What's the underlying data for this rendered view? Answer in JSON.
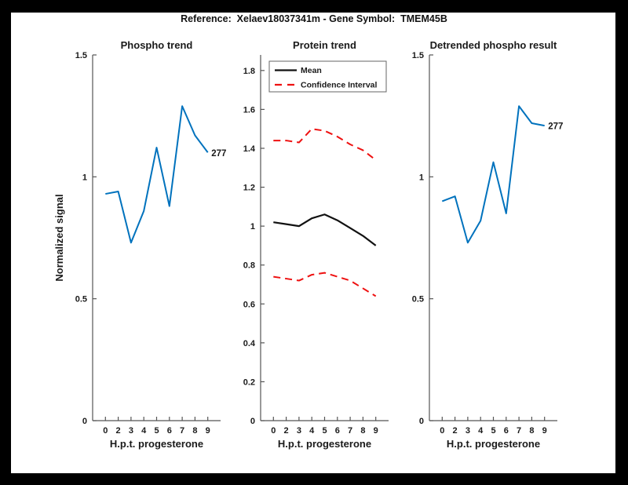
{
  "figure": {
    "title": "Reference:  Xelaev18037341m - Gene Symbol:  TMEM45B"
  },
  "colors": {
    "background": "#000000",
    "canvas": "#ffffff",
    "blue": "#0072BD",
    "red": "#EE1111",
    "black_line": "#111111",
    "axis": "#555555",
    "text": "#1a1a1a",
    "legend_border": "#666666"
  },
  "chart_data": [
    {
      "type": "line",
      "title": "Phospho trend",
      "xlabel": "H.p.t. progesterone",
      "ylabel": "Normalized signal",
      "x_tick_labels": [
        "0",
        "2",
        "3",
        "4",
        "5",
        "6",
        "7",
        "8",
        "9"
      ],
      "xlim": [
        0,
        10
      ],
      "ylim": [
        0,
        1.5
      ],
      "yticks": [
        "0",
        "0.5",
        "1",
        "1.5"
      ],
      "grid": false,
      "legend": null,
      "series": [
        {
          "key": "phospho",
          "name": "Phospho signal",
          "color": "#0072BD",
          "dash": false,
          "width": 2,
          "values": [
            0.93,
            0.94,
            0.73,
            0.86,
            1.12,
            0.88,
            1.29,
            1.17,
            1.1
          ]
        }
      ],
      "end_label": "277"
    },
    {
      "type": "line",
      "title": "Protein trend",
      "xlabel": "H.p.t. progesterone",
      "ylabel": null,
      "x_tick_labels": [
        "0",
        "2",
        "3",
        "4",
        "5",
        "6",
        "7",
        "8",
        "9"
      ],
      "xlim": [
        0,
        10
      ],
      "ylim": [
        0,
        1.88
      ],
      "yticks": [
        "0",
        "0.2",
        "0.4",
        "0.6",
        "0.8",
        "1",
        "1.2",
        "1.4",
        "1.6",
        "1.8"
      ],
      "grid": false,
      "legend": {
        "position": "north",
        "entries": [
          {
            "label": "Mean",
            "color": "#111111",
            "dash": false
          },
          {
            "label": "Confidence Interval",
            "color": "#EE1111",
            "dash": true
          }
        ]
      },
      "series": [
        {
          "key": "ci-upper",
          "name": "Confidence Interval upper",
          "color": "#EE1111",
          "dash": true,
          "width": 2,
          "values": [
            1.44,
            1.44,
            1.43,
            1.5,
            1.49,
            1.46,
            1.42,
            1.39,
            1.34
          ]
        },
        {
          "key": "ci-lower",
          "name": "Confidence Interval lower",
          "color": "#EE1111",
          "dash": true,
          "width": 2,
          "values": [
            0.74,
            0.73,
            0.72,
            0.75,
            0.76,
            0.74,
            0.72,
            0.68,
            0.64
          ]
        },
        {
          "key": "mean",
          "name": "Mean",
          "color": "#111111",
          "dash": false,
          "width": 2.2,
          "values": [
            1.02,
            1.01,
            1.0,
            1.04,
            1.06,
            1.03,
            0.99,
            0.95,
            0.9
          ]
        }
      ],
      "end_label": null
    },
    {
      "type": "line",
      "title": "Detrended phospho result",
      "xlabel": "H.p.t. progesterone",
      "ylabel": null,
      "x_tick_labels": [
        "0",
        "2",
        "3",
        "4",
        "5",
        "6",
        "7",
        "8",
        "9"
      ],
      "xlim": [
        0,
        10
      ],
      "ylim": [
        0,
        1.5
      ],
      "yticks": [
        "0",
        "0.5",
        "1",
        "1.5"
      ],
      "grid": false,
      "legend": null,
      "series": [
        {
          "key": "detrended",
          "name": "Detrended phospho signal",
          "color": "#0072BD",
          "dash": false,
          "width": 2,
          "values": [
            0.9,
            0.92,
            0.73,
            0.82,
            1.06,
            0.85,
            1.29,
            1.22,
            1.21
          ]
        }
      ],
      "end_label": "277"
    }
  ]
}
